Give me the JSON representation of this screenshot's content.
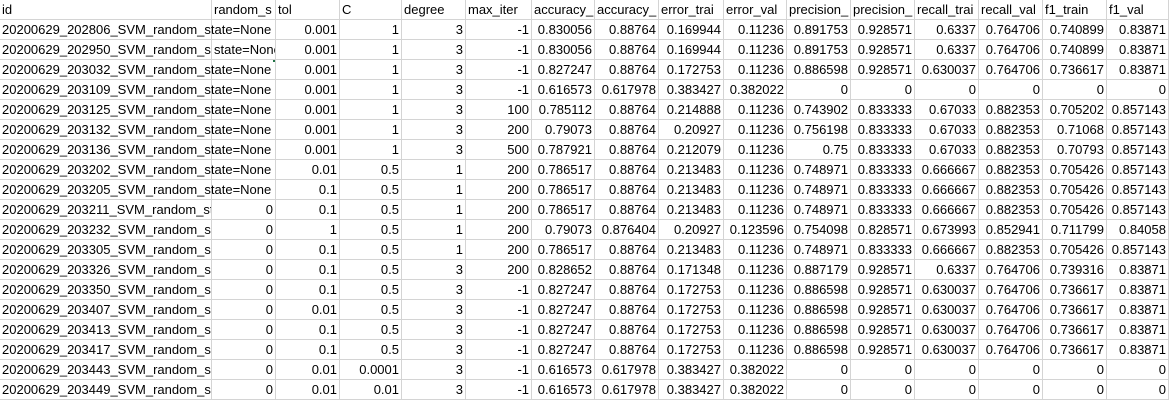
{
  "sheet": {
    "headers": [
      "id",
      "random_s",
      "tol",
      "C",
      "degree",
      "max_iter",
      "accuracy_",
      "accuracy_",
      "error_trai",
      "error_val",
      "precision_",
      "precision_",
      "recall_trai",
      "recall_val",
      "f1_train",
      "f1_val"
    ],
    "rows": [
      [
        "20200629_202806_SVM_random_state=None",
        "",
        "0.001",
        "1",
        "3",
        "-1",
        "0.830056",
        "0.88764",
        "0.169944",
        "0.11236",
        "0.891753",
        "0.928571",
        "0.6337",
        "0.764706",
        "0.740899",
        "0.83871"
      ],
      [
        "20200629_202950_SVM_random_s",
        "state=None",
        "0.001",
        "1",
        "3",
        "-1",
        "0.830056",
        "0.88764",
        "0.169944",
        "0.11236",
        "0.891753",
        "0.928571",
        "0.6337",
        "0.764706",
        "0.740899",
        "0.83871"
      ],
      [
        "20200629_203032_SVM_random_state=None",
        "",
        "0.001",
        "1",
        "3",
        "-1",
        "0.827247",
        "0.88764",
        "0.172753",
        "0.11236",
        "0.886598",
        "0.928571",
        "0.630037",
        "0.764706",
        "0.736617",
        "0.83871"
      ],
      [
        "20200629_203109_SVM_random_state=None",
        "",
        "0.001",
        "1",
        "3",
        "-1",
        "0.616573",
        "0.617978",
        "0.383427",
        "0.382022",
        "0",
        "0",
        "0",
        "0",
        "0",
        "0"
      ],
      [
        "20200629_203125_SVM_random_state=None",
        "",
        "0.001",
        "1",
        "3",
        "100",
        "0.785112",
        "0.88764",
        "0.214888",
        "0.11236",
        "0.743902",
        "0.833333",
        "0.67033",
        "0.882353",
        "0.705202",
        "0.857143"
      ],
      [
        "20200629_203132_SVM_random_state=None",
        "",
        "0.001",
        "1",
        "3",
        "200",
        "0.79073",
        "0.88764",
        "0.20927",
        "0.11236",
        "0.756198",
        "0.833333",
        "0.67033",
        "0.882353",
        "0.71068",
        "0.857143"
      ],
      [
        "20200629_203136_SVM_random_state=None",
        "",
        "0.001",
        "1",
        "3",
        "500",
        "0.787921",
        "0.88764",
        "0.212079",
        "0.11236",
        "0.75",
        "0.833333",
        "0.67033",
        "0.882353",
        "0.70793",
        "0.857143"
      ],
      [
        "20200629_203202_SVM_random_state=None",
        "",
        "0.01",
        "0.5",
        "1",
        "200",
        "0.786517",
        "0.88764",
        "0.213483",
        "0.11236",
        "0.748971",
        "0.833333",
        "0.666667",
        "0.882353",
        "0.705426",
        "0.857143"
      ],
      [
        "20200629_203205_SVM_random_state=None",
        "",
        "0.1",
        "0.5",
        "1",
        "200",
        "0.786517",
        "0.88764",
        "0.213483",
        "0.11236",
        "0.748971",
        "0.833333",
        "0.666667",
        "0.882353",
        "0.705426",
        "0.857143"
      ],
      [
        "20200629_203211_SVM_random_st",
        "0",
        "0.1",
        "0.5",
        "1",
        "200",
        "0.786517",
        "0.88764",
        "0.213483",
        "0.11236",
        "0.748971",
        "0.833333",
        "0.666667",
        "0.882353",
        "0.705426",
        "0.857143"
      ],
      [
        "20200629_203232_SVM_random_st",
        "0",
        "1",
        "0.5",
        "1",
        "200",
        "0.79073",
        "0.876404",
        "0.20927",
        "0.123596",
        "0.754098",
        "0.828571",
        "0.673993",
        "0.852941",
        "0.711799",
        "0.84058"
      ],
      [
        "20200629_203305_SVM_random_st",
        "0",
        "0.1",
        "0.5",
        "1",
        "200",
        "0.786517",
        "0.88764",
        "0.213483",
        "0.11236",
        "0.748971",
        "0.833333",
        "0.666667",
        "0.882353",
        "0.705426",
        "0.857143"
      ],
      [
        "20200629_203326_SVM_random_st",
        "0",
        "0.1",
        "0.5",
        "3",
        "200",
        "0.828652",
        "0.88764",
        "0.171348",
        "0.11236",
        "0.887179",
        "0.928571",
        "0.6337",
        "0.764706",
        "0.739316",
        "0.83871"
      ],
      [
        "20200629_203350_SVM_random_st",
        "0",
        "0.1",
        "0.5",
        "3",
        "-1",
        "0.827247",
        "0.88764",
        "0.172753",
        "0.11236",
        "0.886598",
        "0.928571",
        "0.630037",
        "0.764706",
        "0.736617",
        "0.83871"
      ],
      [
        "20200629_203407_SVM_random_st",
        "0",
        "0.01",
        "0.5",
        "3",
        "-1",
        "0.827247",
        "0.88764",
        "0.172753",
        "0.11236",
        "0.886598",
        "0.928571",
        "0.630037",
        "0.764706",
        "0.736617",
        "0.83871"
      ],
      [
        "20200629_203413_SVM_random_st",
        "0",
        "0.1",
        "0.5",
        "3",
        "-1",
        "0.827247",
        "0.88764",
        "0.172753",
        "0.11236",
        "0.886598",
        "0.928571",
        "0.630037",
        "0.764706",
        "0.736617",
        "0.83871"
      ],
      [
        "20200629_203417_SVM_random_st",
        "0",
        "0.1",
        "0.5",
        "3",
        "-1",
        "0.827247",
        "0.88764",
        "0.172753",
        "0.11236",
        "0.886598",
        "0.928571",
        "0.630037",
        "0.764706",
        "0.736617",
        "0.83871"
      ],
      [
        "20200629_203443_SVM_random_st",
        "0",
        "0.01",
        "0.0001",
        "3",
        "-1",
        "0.616573",
        "0.617978",
        "0.383427",
        "0.382022",
        "0",
        "0",
        "0",
        "0",
        "0",
        "0"
      ],
      [
        "20200629_203449_SVM_random_st",
        "0",
        "0.01",
        "0.01",
        "3",
        "-1",
        "0.616573",
        "0.617978",
        "0.383427",
        "0.382022",
        "0",
        "0",
        "0",
        "0",
        "0",
        "0"
      ]
    ]
  },
  "colors": {
    "selection": "#217346",
    "gridline": "#d4d4d4"
  }
}
